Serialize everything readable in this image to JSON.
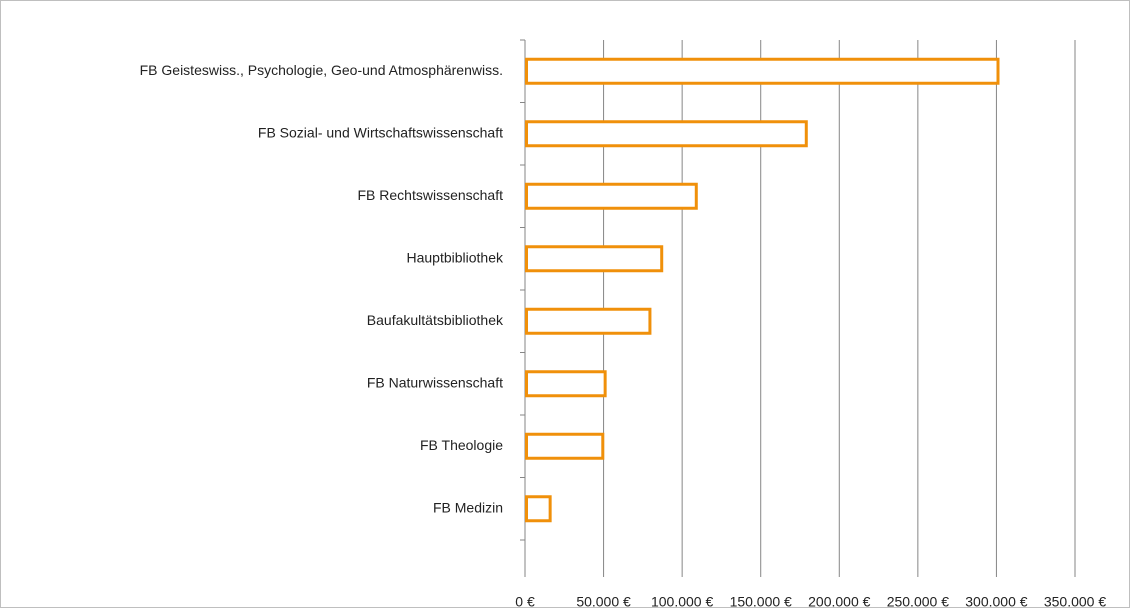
{
  "chart_data": {
    "type": "bar",
    "orientation": "horizontal",
    "categories": [
      "FB Geisteswiss., Psychologie, Geo-und Atmosphärenwiss.",
      "FB Sozial- und Wirtschaftswissenschaft",
      "FB Rechtswissenschaft",
      "Hauptbibliothek",
      "Baufakultätsbibliothek",
      "FB Naturwissenschaft",
      "FB Theologie",
      "FB Medizin"
    ],
    "values": [
      301000,
      179000,
      109000,
      87000,
      79500,
      51000,
      49500,
      16000
    ],
    "color": "#f0900a",
    "xlim": [
      0,
      350000
    ],
    "xticks": [
      {
        "value": 0,
        "label": "0 €"
      },
      {
        "value": 50000,
        "label": "50.000 €"
      },
      {
        "value": 100000,
        "label": "100.000 €"
      },
      {
        "value": 150000,
        "label": "150.000 €"
      },
      {
        "value": 200000,
        "label": "200.000 €"
      },
      {
        "value": 250000,
        "label": "250.000 €"
      },
      {
        "value": 300000,
        "label": "300.000 €"
      },
      {
        "value": 350000,
        "label": "350.000 €"
      }
    ],
    "grid": true
  }
}
